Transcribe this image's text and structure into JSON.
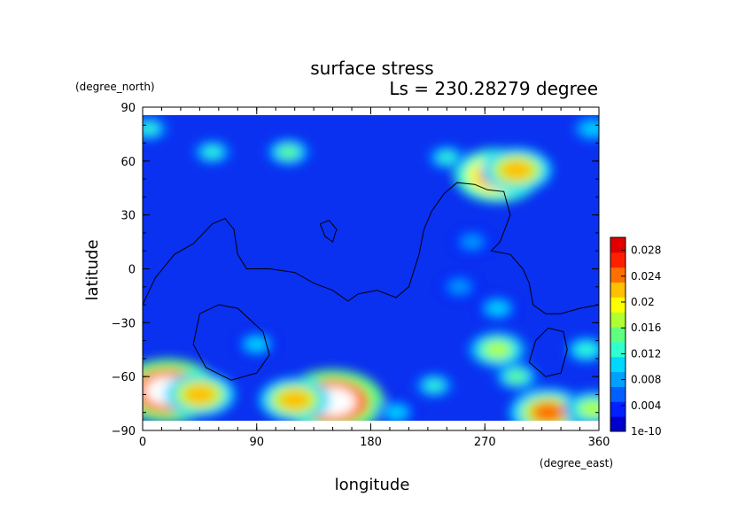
{
  "chart_data": {
    "type": "heatmap",
    "title": "surface stress",
    "subtitle": "Ls = 230.28279 degree",
    "xlabel": "longitude",
    "ylabel": "latitude",
    "x_units": "(degree_east)",
    "y_units": "(degree_north)",
    "xlim": [
      0,
      360
    ],
    "ylim": [
      -90,
      90
    ],
    "x_ticks": [
      "0",
      "90",
      "180",
      "270",
      "360"
    ],
    "y_ticks": [
      "90",
      "60",
      "30",
      "0",
      "−30",
      "−60",
      "−90"
    ],
    "colorbar": {
      "range": [
        0,
        0.03
      ],
      "tick_labels": [
        "1e-10",
        "0.004",
        "0.008",
        "0.012",
        "0.016",
        "0.02",
        "0.024",
        "0.028"
      ],
      "tick_values": [
        0,
        0.004,
        0.008,
        0.012,
        0.016,
        0.02,
        0.024,
        0.028
      ],
      "colors": [
        "#0000cc",
        "#0020ff",
        "#0060ff",
        "#00a0ff",
        "#00d8ff",
        "#30ffd0",
        "#60ff80",
        "#b0ff30",
        "#ffff00",
        "#ffc000",
        "#ff7000",
        "#ff2000",
        "#e00000"
      ]
    },
    "hotspots": [
      {
        "lon": 280,
        "lat": 52,
        "value": 0.027
      },
      {
        "lon": 295,
        "lat": 55,
        "value": 0.022
      },
      {
        "lon": 55,
        "lat": 65,
        "value": 0.012
      },
      {
        "lon": 115,
        "lat": 65,
        "value": 0.014
      },
      {
        "lon": 240,
        "lat": 62,
        "value": 0.012
      },
      {
        "lon": 5,
        "lat": 78,
        "value": 0.012
      },
      {
        "lon": 355,
        "lat": 78,
        "value": 0.011
      },
      {
        "lon": 250,
        "lat": -10,
        "value": 0.008
      },
      {
        "lon": 260,
        "lat": 15,
        "value": 0.007
      },
      {
        "lon": 280,
        "lat": -22,
        "value": 0.01
      },
      {
        "lon": 90,
        "lat": -42,
        "value": 0.01
      },
      {
        "lon": 280,
        "lat": -45,
        "value": 0.018
      },
      {
        "lon": 295,
        "lat": -60,
        "value": 0.014
      },
      {
        "lon": 350,
        "lat": -45,
        "value": 0.013
      },
      {
        "lon": 20,
        "lat": -68,
        "value": 0.032
      },
      {
        "lon": 45,
        "lat": -70,
        "value": 0.022
      },
      {
        "lon": 150,
        "lat": -74,
        "value": 0.032
      },
      {
        "lon": 120,
        "lat": -73,
        "value": 0.022
      },
      {
        "lon": 230,
        "lat": -65,
        "value": 0.012
      },
      {
        "lon": 320,
        "lat": -80,
        "value": 0.024
      },
      {
        "lon": 355,
        "lat": -78,
        "value": 0.018
      },
      {
        "lon": 200,
        "lat": -80,
        "value": 0.01
      }
    ],
    "contours": [
      [
        [
          0,
          -20
        ],
        [
          10,
          -5
        ],
        [
          25,
          8
        ],
        [
          40,
          14
        ],
        [
          55,
          25
        ],
        [
          65,
          28
        ],
        [
          72,
          22
        ],
        [
          75,
          8
        ],
        [
          82,
          0
        ],
        [
          100,
          0
        ],
        [
          120,
          -2
        ],
        [
          135,
          -8
        ],
        [
          150,
          -12
        ],
        [
          162,
          -18
        ],
        [
          170,
          -14
        ],
        [
          185,
          -12
        ],
        [
          200,
          -16
        ],
        [
          210,
          -10
        ],
        [
          218,
          8
        ],
        [
          222,
          22
        ],
        [
          228,
          32
        ],
        [
          238,
          42
        ],
        [
          248,
          48
        ],
        [
          262,
          47
        ],
        [
          272,
          44
        ],
        [
          285,
          43
        ],
        [
          290,
          30
        ],
        [
          282,
          15
        ],
        [
          275,
          10
        ],
        [
          290,
          8
        ],
        [
          300,
          0
        ],
        [
          305,
          -8
        ],
        [
          308,
          -20
        ],
        [
          318,
          -25
        ],
        [
          330,
          -25
        ],
        [
          345,
          -22
        ],
        [
          360,
          -20
        ]
      ],
      [
        [
          140,
          25
        ],
        [
          147,
          27
        ],
        [
          153,
          22
        ],
        [
          150,
          15
        ],
        [
          144,
          18
        ],
        [
          140,
          25
        ]
      ],
      [
        [
          45,
          -25
        ],
        [
          60,
          -20
        ],
        [
          75,
          -22
        ],
        [
          95,
          -35
        ],
        [
          100,
          -48
        ],
        [
          90,
          -58
        ],
        [
          70,
          -62
        ],
        [
          50,
          -55
        ],
        [
          40,
          -42
        ],
        [
          45,
          -25
        ]
      ],
      [
        [
          310,
          -40
        ],
        [
          320,
          -33
        ],
        [
          332,
          -35
        ],
        [
          335,
          -45
        ],
        [
          330,
          -58
        ],
        [
          318,
          -60
        ],
        [
          305,
          -52
        ],
        [
          308,
          -45
        ],
        [
          310,
          -40
        ]
      ]
    ]
  }
}
